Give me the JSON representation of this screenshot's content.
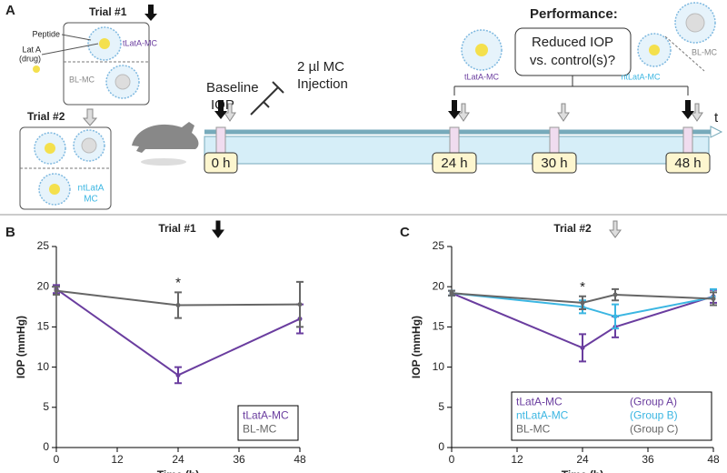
{
  "panel_a": {
    "label": "A",
    "trial1": "Trial #1",
    "peptide": "Peptide",
    "lata": [
      "Lat A",
      "(drug)"
    ],
    "tlata": "tLatA-MC",
    "blmc": "BL-MC",
    "trial2": "Trial #2",
    "ntlata": [
      "ntLatA",
      "MC"
    ],
    "baseline": [
      "Baseline",
      "IOP"
    ],
    "injection": [
      "2 µl MC",
      "Injection"
    ],
    "performance": "Performance:",
    "question": [
      "Reduced IOP",
      "vs. control(s)?"
    ],
    "perf_tlata": "tLatA-MC",
    "perf_ntlata": "ntLatA-MC",
    "perf_bl": "BL-MC",
    "t": "t",
    "times": [
      "0 h",
      "24 h",
      "30 h",
      "48 h"
    ]
  },
  "chart_data": [
    {
      "type": "line",
      "panel": "B",
      "title": "Trial #1",
      "xlabel": "Time (h)",
      "ylabel": "IOP (mmHg)",
      "annotation": "*",
      "x": [
        0,
        24,
        48
      ],
      "xlim": [
        0,
        48
      ],
      "xticks": [
        0,
        12,
        24,
        36,
        48
      ],
      "ylim": [
        0,
        25
      ],
      "yticks": [
        0,
        5,
        10,
        15,
        20,
        25
      ],
      "legend": "lower right",
      "series": [
        {
          "name": "tLatA-MC",
          "color": "#6a3d9f",
          "values": [
            19.7,
            9.0,
            16.0
          ],
          "errors": [
            0.5,
            1.0,
            1.8
          ]
        },
        {
          "name": "BL-MC",
          "color": "#666666",
          "values": [
            19.5,
            17.7,
            17.8
          ],
          "errors": [
            0.5,
            1.6,
            2.8
          ]
        }
      ]
    },
    {
      "type": "line",
      "panel": "C",
      "title": "Trial #2",
      "xlabel": "Time (h)",
      "ylabel": "IOP (mmHg)",
      "annotation": "*",
      "x": [
        0,
        24,
        30,
        48
      ],
      "xlim": [
        0,
        48
      ],
      "xticks": [
        0,
        12,
        24,
        36,
        48
      ],
      "ylim": [
        0,
        25
      ],
      "yticks": [
        0,
        5,
        10,
        15,
        20,
        25
      ],
      "legend": "lower right",
      "series": [
        {
          "name": "tLatA-MC",
          "group": "(Group A)",
          "color": "#6a3d9f",
          "values": [
            19.2,
            12.4,
            15.0,
            18.8
          ],
          "errors": [
            0.3,
            1.7,
            1.3,
            0.8
          ]
        },
        {
          "name": "ntLatA-MC",
          "group": "(Group B)",
          "color": "#3bb6e2",
          "values": [
            19.2,
            17.5,
            16.3,
            18.7
          ],
          "errors": [
            0.3,
            0.8,
            1.5,
            1.0
          ]
        },
        {
          "name": "BL-MC",
          "group": "(Group C)",
          "color": "#666666",
          "values": [
            19.2,
            18.0,
            19.0,
            18.5
          ],
          "errors": [
            0.3,
            0.8,
            0.7,
            0.8
          ]
        }
      ]
    }
  ]
}
